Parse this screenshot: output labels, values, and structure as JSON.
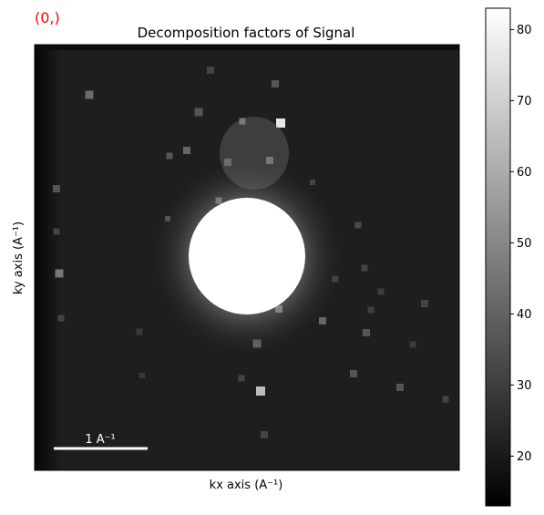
{
  "figure": {
    "marker_text": "(0,)",
    "marker_color": "#ff0000"
  },
  "chart_data": {
    "type": "heatmap",
    "title": "Decomposition factors of  Signal",
    "xlabel": "kx axis (A⁻¹)",
    "ylabel": "ky axis (A⁻¹)",
    "colormap": "gray",
    "grid": false,
    "xticks": [],
    "yticks": [],
    "colorbar": {
      "range": [
        13,
        83
      ],
      "ticks": [
        20,
        30,
        40,
        50,
        60,
        70,
        80
      ],
      "tick_labels": [
        "20",
        "30",
        "40",
        "50",
        "60",
        "70",
        "80"
      ]
    },
    "scalebar": {
      "label": "1 A⁻¹",
      "color": "#ffffff"
    },
    "features": {
      "background_level": 22,
      "central_disk_level": 83,
      "halo_level": 48,
      "top_row_level": 13
    }
  }
}
